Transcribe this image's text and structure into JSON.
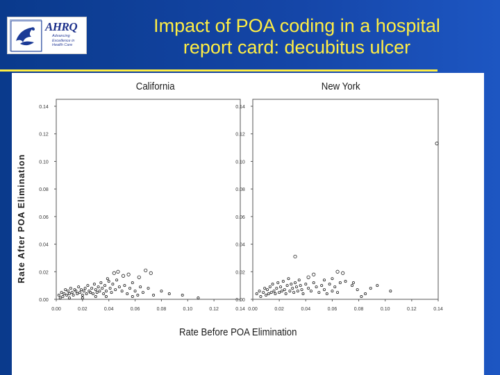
{
  "slide": {
    "title_line1": "Impact of POA coding in a hospital",
    "title_line2": "report card: decubitus ulcer"
  },
  "logo": {
    "name": "AHRQ",
    "tagline": [
      "Advancing",
      "Excellence in",
      "Health Care"
    ]
  },
  "colors": {
    "background": "#0b3d91",
    "title": "#ffee44",
    "rule": "#ffee44",
    "panel": "#ffffff"
  },
  "chart_data": {
    "type": "scatter",
    "xlabel": "Rate Before POA Elimination",
    "ylabel": "Rate After POA Elimination",
    "x_ticks": [
      "0.00",
      "0.02",
      "0.04",
      "0.06",
      "0.08",
      "0.10",
      "0.12",
      "0.14"
    ],
    "y_ticks": [
      "0.00",
      "0.02",
      "0.04",
      "0.06",
      "0.08",
      "0.10",
      "0.12",
      "0.14"
    ],
    "xlim": [
      0,
      0.14
    ],
    "ylim": [
      0,
      0.14
    ],
    "grid": false,
    "panels": [
      {
        "title": "California",
        "points": [
          [
            0.002,
            0.003
          ],
          [
            0.004,
            0.005
          ],
          [
            0.005,
            0.002
          ],
          [
            0.006,
            0.004
          ],
          [
            0.007,
            0.007
          ],
          [
            0.008,
            0.003
          ],
          [
            0.009,
            0.006
          ],
          [
            0.01,
            0.004
          ],
          [
            0.011,
            0.008
          ],
          [
            0.012,
            0.005
          ],
          [
            0.013,
            0.003
          ],
          [
            0.014,
            0.007
          ],
          [
            0.015,
            0.006
          ],
          [
            0.016,
            0.004
          ],
          [
            0.017,
            0.009
          ],
          [
            0.018,
            0.005
          ],
          [
            0.019,
            0.007
          ],
          [
            0.02,
            0.003
          ],
          [
            0.021,
            0.006
          ],
          [
            0.022,
            0.008
          ],
          [
            0.023,
            0.004
          ],
          [
            0.024,
            0.01
          ],
          [
            0.025,
            0.006
          ],
          [
            0.026,
            0.005
          ],
          [
            0.027,
            0.008
          ],
          [
            0.028,
            0.004
          ],
          [
            0.029,
            0.011
          ],
          [
            0.03,
            0.007
          ],
          [
            0.031,
            0.005
          ],
          [
            0.032,
            0.009
          ],
          [
            0.033,
            0.006
          ],
          [
            0.034,
            0.012
          ],
          [
            0.035,
            0.008
          ],
          [
            0.036,
            0.004
          ],
          [
            0.037,
            0.01
          ],
          [
            0.038,
            0.006
          ],
          [
            0.04,
            0.013
          ],
          [
            0.041,
            0.008
          ],
          [
            0.042,
            0.005
          ],
          [
            0.043,
            0.011
          ],
          [
            0.045,
            0.007
          ],
          [
            0.046,
            0.014
          ],
          [
            0.048,
            0.009
          ],
          [
            0.05,
            0.006
          ],
          [
            0.052,
            0.01
          ],
          [
            0.054,
            0.004
          ],
          [
            0.056,
            0.008
          ],
          [
            0.058,
            0.012
          ],
          [
            0.06,
            0.006
          ],
          [
            0.062,
            0.003
          ],
          [
            0.064,
            0.009
          ],
          [
            0.066,
            0.005
          ],
          [
            0.07,
            0.008
          ],
          [
            0.074,
            0.003
          ],
          [
            0.047,
            0.02
          ],
          [
            0.055,
            0.018
          ],
          [
            0.068,
            0.021
          ],
          [
            0.072,
            0.019
          ],
          [
            0.063,
            0.016
          ],
          [
            0.051,
            0.017
          ],
          [
            0.039,
            0.015
          ],
          [
            0.044,
            0.019
          ],
          [
            0.08,
            0.006
          ],
          [
            0.086,
            0.004
          ],
          [
            0.096,
            0.003
          ],
          [
            0.108,
            0.001
          ],
          [
            0.003,
            0.001
          ],
          [
            0.01,
            0.001
          ],
          [
            0.02,
            0.001
          ],
          [
            0.03,
            0.002
          ],
          [
            0.038,
            0.002
          ],
          [
            0.058,
            0.002
          ]
        ]
      },
      {
        "title": "New York",
        "points": [
          [
            0.003,
            0.004
          ],
          [
            0.005,
            0.006
          ],
          [
            0.006,
            0.002
          ],
          [
            0.008,
            0.005
          ],
          [
            0.009,
            0.008
          ],
          [
            0.01,
            0.003
          ],
          [
            0.011,
            0.007
          ],
          [
            0.012,
            0.004
          ],
          [
            0.013,
            0.009
          ],
          [
            0.014,
            0.005
          ],
          [
            0.015,
            0.011
          ],
          [
            0.016,
            0.006
          ],
          [
            0.017,
            0.004
          ],
          [
            0.018,
            0.008
          ],
          [
            0.019,
            0.012
          ],
          [
            0.02,
            0.005
          ],
          [
            0.021,
            0.009
          ],
          [
            0.022,
            0.006
          ],
          [
            0.023,
            0.013
          ],
          [
            0.024,
            0.007
          ],
          [
            0.025,
            0.004
          ],
          [
            0.026,
            0.01
          ],
          [
            0.027,
            0.015
          ],
          [
            0.028,
            0.006
          ],
          [
            0.029,
            0.011
          ],
          [
            0.03,
            0.008
          ],
          [
            0.031,
            0.005
          ],
          [
            0.032,
            0.012
          ],
          [
            0.033,
            0.009
          ],
          [
            0.034,
            0.006
          ],
          [
            0.035,
            0.014
          ],
          [
            0.036,
            0.01
          ],
          [
            0.037,
            0.007
          ],
          [
            0.038,
            0.004
          ],
          [
            0.04,
            0.011
          ],
          [
            0.042,
            0.008
          ],
          [
            0.044,
            0.006
          ],
          [
            0.046,
            0.012
          ],
          [
            0.048,
            0.009
          ],
          [
            0.05,
            0.005
          ],
          [
            0.052,
            0.01
          ],
          [
            0.054,
            0.007
          ],
          [
            0.056,
            0.004
          ],
          [
            0.058,
            0.011
          ],
          [
            0.06,
            0.006
          ],
          [
            0.062,
            0.009
          ],
          [
            0.064,
            0.005
          ],
          [
            0.066,
            0.012
          ],
          [
            0.042,
            0.016
          ],
          [
            0.046,
            0.018
          ],
          [
            0.054,
            0.014
          ],
          [
            0.06,
            0.015
          ],
          [
            0.07,
            0.013
          ],
          [
            0.068,
            0.019
          ],
          [
            0.075,
            0.01
          ],
          [
            0.079,
            0.007
          ],
          [
            0.082,
            0.002
          ],
          [
            0.089,
            0.008
          ],
          [
            0.094,
            0.01
          ],
          [
            0.104,
            0.006
          ],
          [
            0.076,
            0.012
          ],
          [
            0.085,
            0.004
          ],
          [
            0.032,
            0.031
          ],
          [
            0.064,
            0.02
          ],
          [
            0.139,
            0.113
          ]
        ]
      }
    ]
  }
}
